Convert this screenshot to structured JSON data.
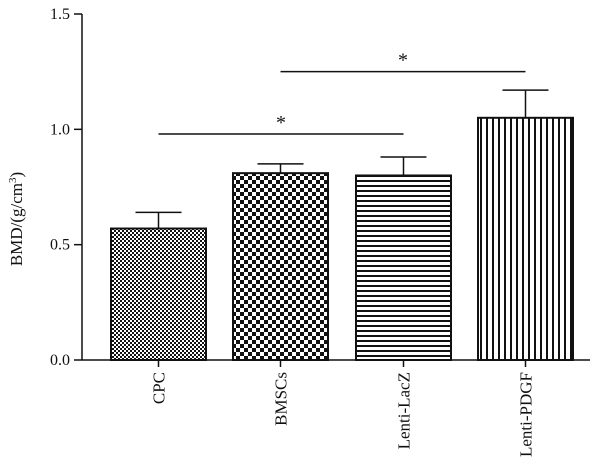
{
  "chart_data": {
    "type": "bar",
    "categories": [
      "CPC",
      "BMSCs",
      "Lenti-LacZ",
      "Lenti-PDGF"
    ],
    "values": [
      0.57,
      0.81,
      0.8,
      1.05
    ],
    "errors": [
      0.07,
      0.04,
      0.08,
      0.12
    ],
    "ylabel_main": "BMD/(g/cm",
    "ylabel_sup": "3",
    "ylabel_close": ")",
    "ylim": [
      0,
      1.5
    ],
    "yticks": [
      {
        "value": 0.0,
        "label": "0.0"
      },
      {
        "value": 0.5,
        "label": "0.5"
      },
      {
        "value": 1.0,
        "label": "1.0"
      },
      {
        "value": 1.5,
        "label": "1.5"
      }
    ],
    "patterns": [
      "fine-checker",
      "checker",
      "horizontal-lines",
      "vertical-lines"
    ],
    "significance": [
      {
        "from": 0,
        "to": 2,
        "level": 0.98,
        "label": "*"
      },
      {
        "from": 1,
        "to": 3,
        "level": 1.25,
        "label": "*"
      }
    ],
    "grid": false,
    "legend": "none"
  }
}
